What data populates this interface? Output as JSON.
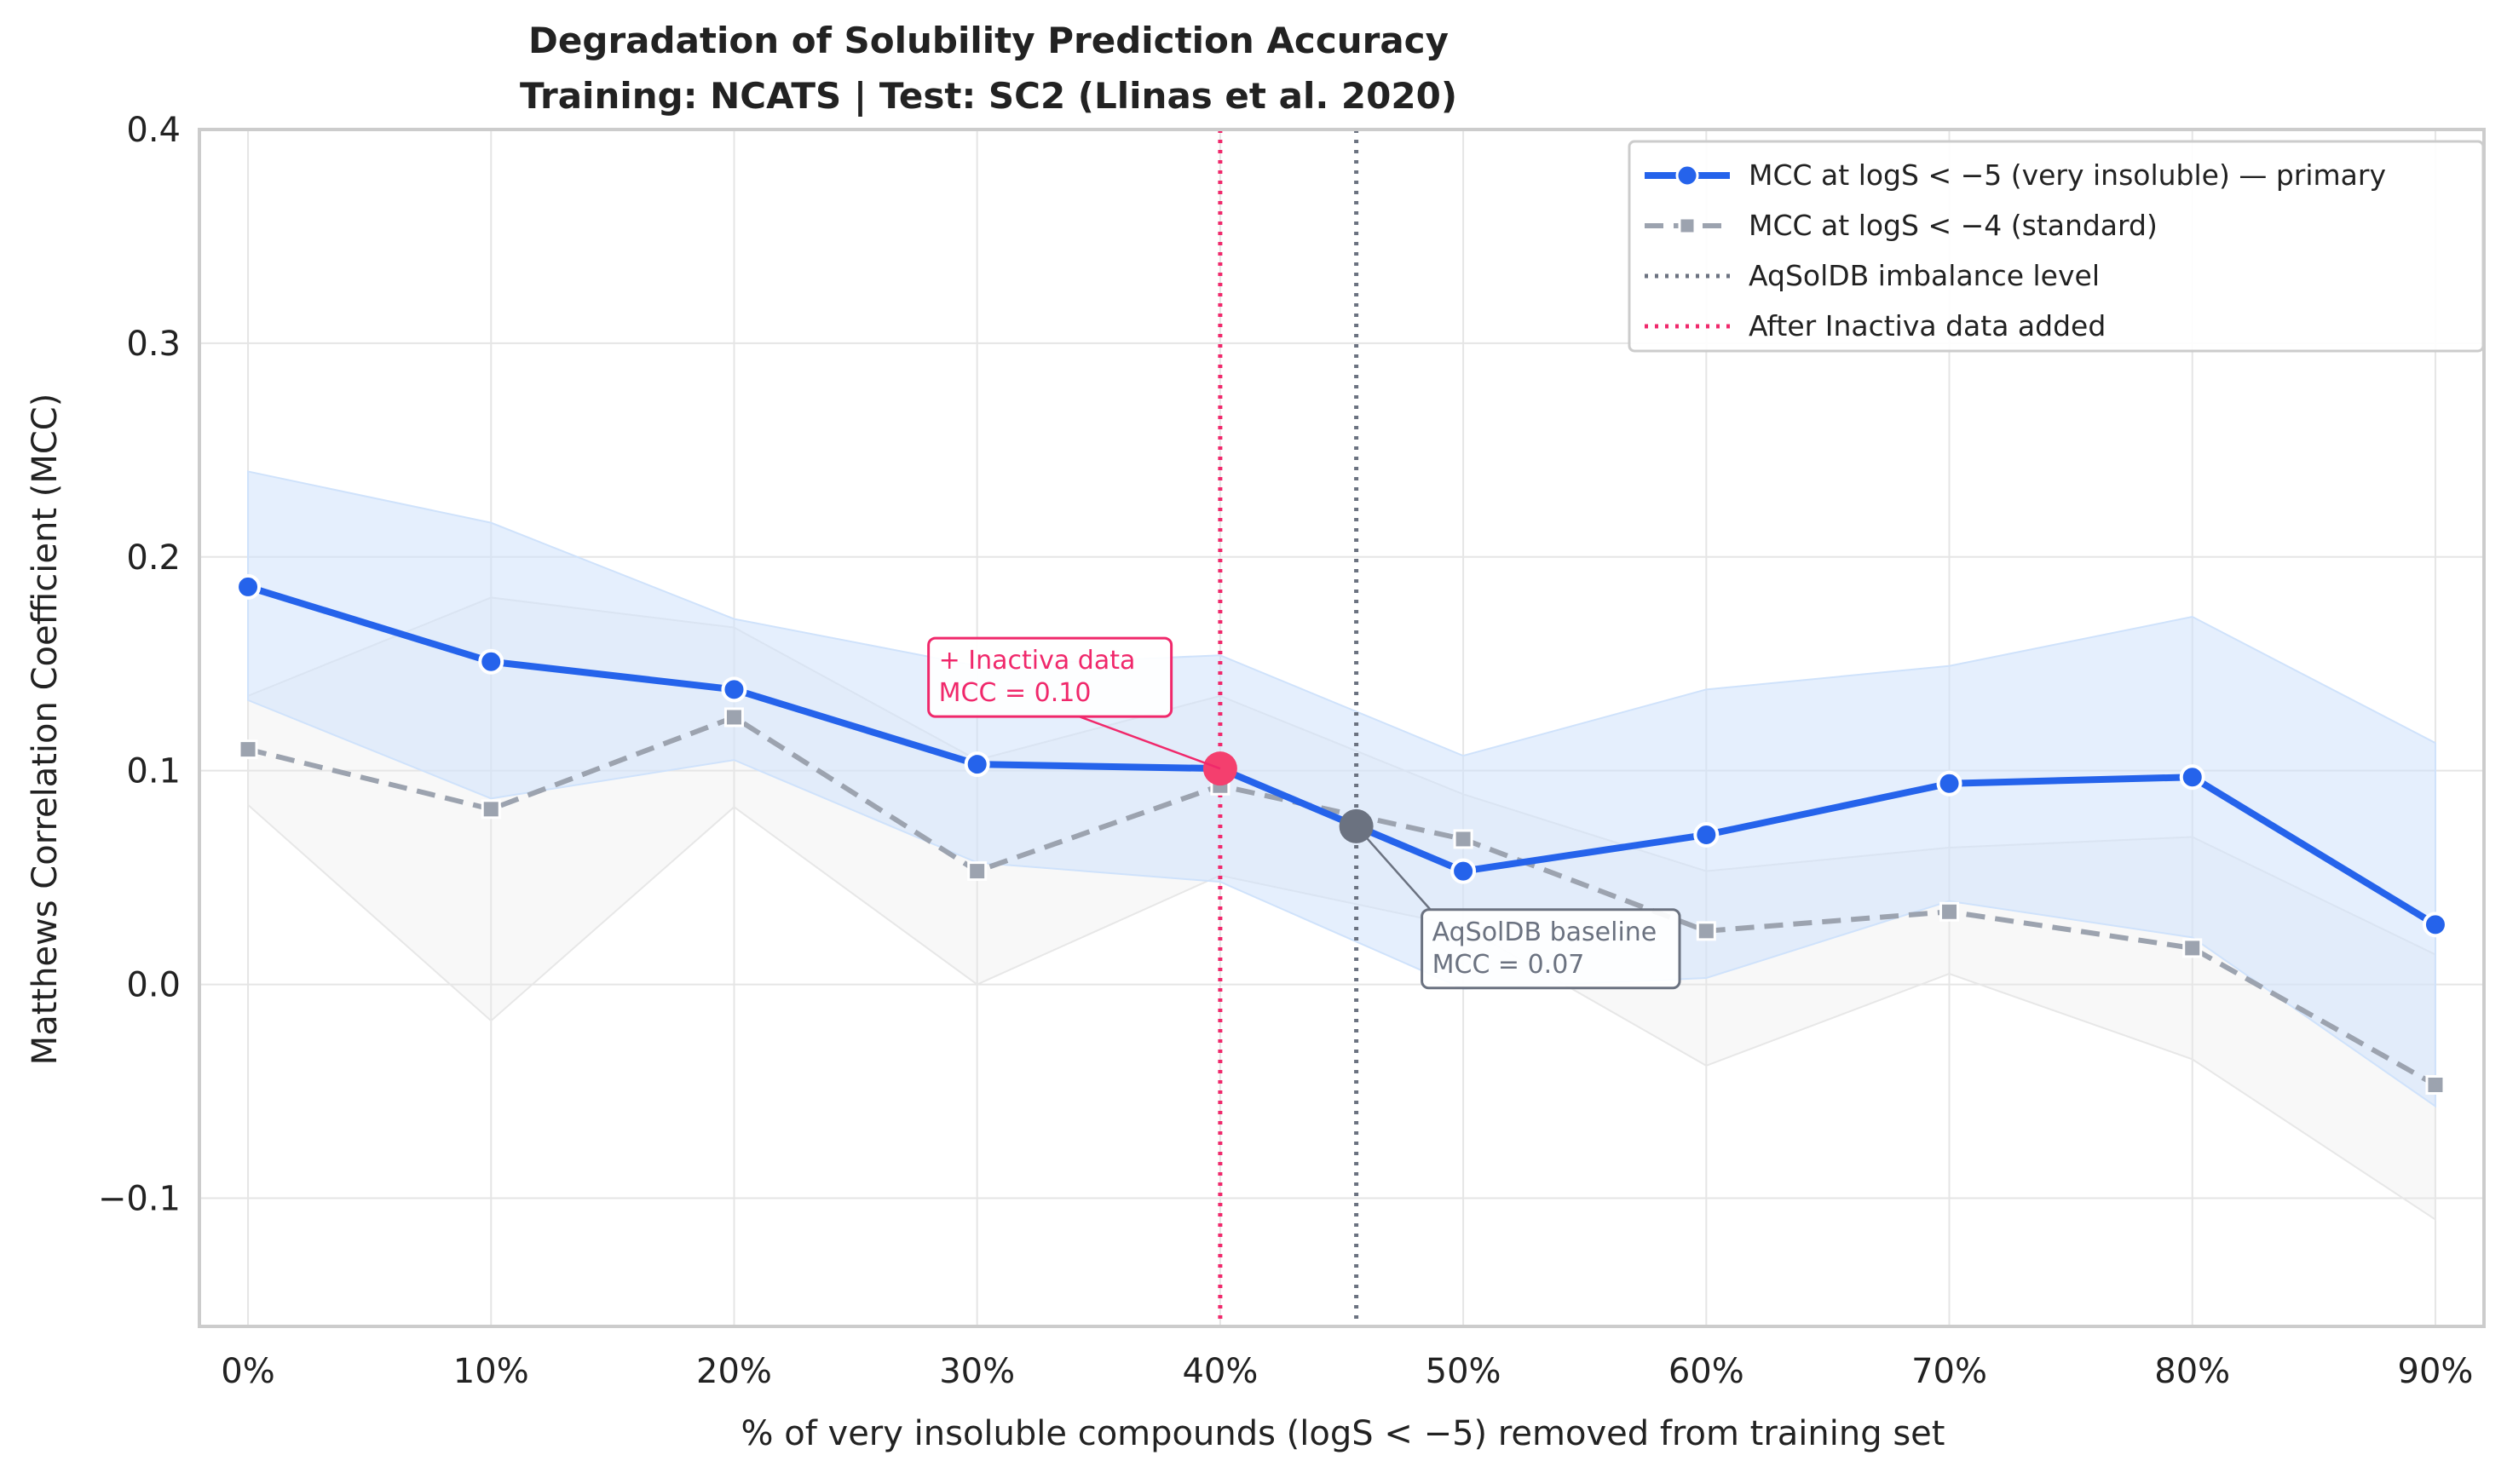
{
  "chart_data": {
    "type": "line",
    "title": "Degradation of Solubility Prediction Accuracy",
    "subtitle": "Training: NCATS | Test: SC2 (Llinas et al. 2020)",
    "xlabel": "% of very insoluble compounds (logS < −5) removed from training set",
    "ylabel": "Matthews Correlation Coefficient (MCC)",
    "x_tick_labels": [
      "0%",
      "10%",
      "20%",
      "30%",
      "40%",
      "50%",
      "60%",
      "70%",
      "80%",
      "90%"
    ],
    "x": [
      0,
      10,
      20,
      30,
      40,
      50,
      60,
      70,
      80,
      90
    ],
    "xlim": [
      -2,
      92
    ],
    "ylim": [
      -0.16,
      0.4
    ],
    "y_ticks": [
      -0.1,
      0.0,
      0.1,
      0.2,
      0.3,
      0.4
    ],
    "y_tick_labels": [
      "−0.1",
      "0.0",
      "0.1",
      "0.2",
      "0.3",
      "0.4"
    ],
    "grid": true,
    "legend_position": "top-right",
    "series": [
      {
        "name": "MCC at logS < −5 (very insoluble) — primary",
        "color": "#2563eb",
        "line_style": "solid",
        "marker": "circle",
        "values": [
          0.186,
          0.151,
          0.138,
          0.103,
          0.101,
          0.053,
          0.07,
          0.094,
          0.097,
          0.028
        ],
        "band_upper": [
          0.24,
          0.216,
          0.171,
          0.149,
          0.154,
          0.107,
          0.138,
          0.149,
          0.172,
          0.113
        ],
        "band_lower": [
          0.133,
          0.087,
          0.105,
          0.057,
          0.048,
          -0.002,
          0.003,
          0.039,
          0.022,
          -0.057
        ],
        "band_color": "#cfe2fb"
      },
      {
        "name": "MCC at logS < −4 (standard)",
        "color": "#9ca3af",
        "line_style": "dashed",
        "marker": "square",
        "values": [
          0.11,
          0.082,
          0.125,
          0.053,
          0.093,
          0.068,
          0.025,
          0.034,
          0.017,
          -0.047
        ],
        "band_upper": [
          0.135,
          0.181,
          0.167,
          0.105,
          0.135,
          0.089,
          0.053,
          0.064,
          0.069,
          0.014
        ],
        "band_lower": [
          0.084,
          -0.017,
          0.083,
          0.0,
          0.051,
          0.027,
          -0.038,
          0.005,
          -0.035,
          -0.11
        ],
        "band_color": "#e7e7e7"
      }
    ],
    "vertical_lines": [
      {
        "name": "AqSolDB imbalance level",
        "x": 45.6,
        "color": "#6b7280",
        "line_style": "dotted"
      },
      {
        "name": "After Inactiva data added",
        "x": 40,
        "color": "#f0286b",
        "line_style": "dotted"
      }
    ],
    "highlight_points": [
      {
        "x": 40,
        "y": 0.101,
        "color": "#f43f6e"
      },
      {
        "x": 45.6,
        "y": 0.074,
        "color": "#6b7280"
      }
    ],
    "annotations": [
      {
        "text_lines": [
          "+ Inactiva data",
          "MCC = 0.10"
        ],
        "x": 28,
        "y": 0.162,
        "color": "#f0286b",
        "arrow_to": {
          "x": 40,
          "y": 0.101
        }
      },
      {
        "text_lines": [
          "AqSolDB baseline",
          "MCC = 0.07"
        ],
        "x": 48.3,
        "y": 0.035,
        "color": "#6b7280",
        "arrow_to": {
          "x": 45.6,
          "y": 0.074
        }
      }
    ]
  }
}
